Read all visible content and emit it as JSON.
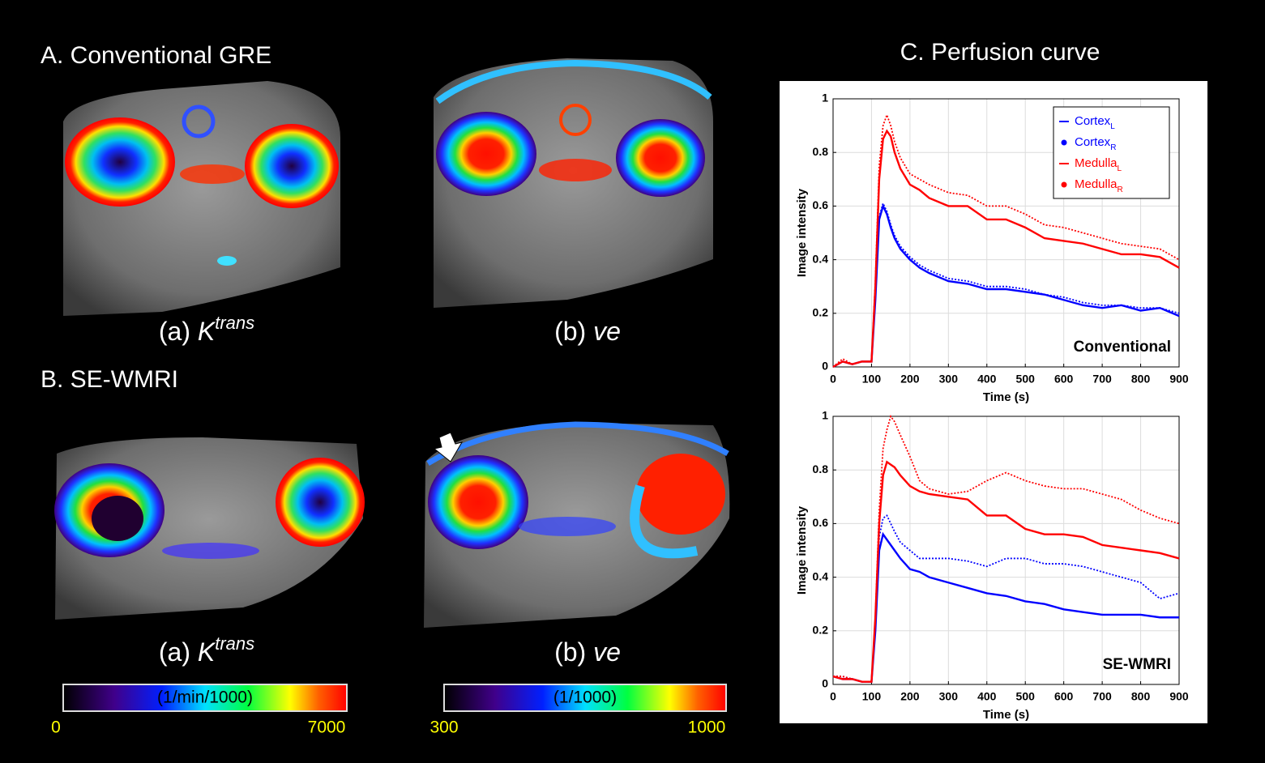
{
  "panels": {
    "a_title": "A. Conventional GRE",
    "b_title": "B. SE-WMRI",
    "c_title": "C. Perfusion curve",
    "captions": [
      {
        "prefix": "(a)",
        "symbol": "K",
        "superscript": "trans"
      },
      {
        "prefix": "(b)",
        "symbol": "ve"
      },
      {
        "prefix": "(a)",
        "symbol": "K",
        "superscript": "trans"
      },
      {
        "prefix": "(b)",
        "symbol": "ve"
      }
    ]
  },
  "colorbars": [
    {
      "label": "(1/min/1000)",
      "min": "0",
      "max": "7000"
    },
    {
      "label": "(1/1000)",
      "min": "300",
      "max": "1000"
    }
  ],
  "chart_data": [
    {
      "type": "line",
      "annotation": "Conventional",
      "xlabel": "Time (s)",
      "ylabel": "Image intensity",
      "xlim": [
        0,
        900
      ],
      "ylim": [
        0,
        1
      ],
      "xticks": [
        0,
        100,
        200,
        300,
        400,
        500,
        600,
        700,
        800,
        900
      ],
      "yticks": [
        0,
        0.2,
        0.4,
        0.6,
        0.8,
        1
      ],
      "grid": true,
      "legend": "upper right",
      "x": [
        0,
        25,
        50,
        75,
        100,
        110,
        120,
        130,
        140,
        150,
        160,
        175,
        200,
        225,
        250,
        300,
        350,
        400,
        450,
        500,
        550,
        600,
        650,
        700,
        750,
        800,
        850,
        900
      ],
      "series": [
        {
          "name": "Cortex",
          "subscript": "L",
          "color": "#0000ff",
          "style": "solid",
          "values": [
            0,
            0.02,
            0.01,
            0.02,
            0.02,
            0.25,
            0.55,
            0.6,
            0.57,
            0.52,
            0.48,
            0.44,
            0.4,
            0.37,
            0.35,
            0.32,
            0.31,
            0.29,
            0.29,
            0.28,
            0.27,
            0.25,
            0.23,
            0.22,
            0.23,
            0.21,
            0.22,
            0.19
          ]
        },
        {
          "name": "Cortex",
          "subscript": "R",
          "color": "#0000ff",
          "style": "dotted",
          "values": [
            0,
            0.02,
            0.01,
            0.02,
            0.02,
            0.26,
            0.56,
            0.61,
            0.58,
            0.53,
            0.49,
            0.45,
            0.41,
            0.38,
            0.36,
            0.33,
            0.32,
            0.3,
            0.3,
            0.29,
            0.27,
            0.26,
            0.24,
            0.23,
            0.23,
            0.22,
            0.22,
            0.2
          ]
        },
        {
          "name": "Medulla",
          "subscript": "L",
          "color": "#ff0000",
          "style": "solid",
          "values": [
            0,
            0.02,
            0.01,
            0.02,
            0.02,
            0.3,
            0.7,
            0.85,
            0.88,
            0.86,
            0.8,
            0.74,
            0.68,
            0.66,
            0.63,
            0.6,
            0.6,
            0.55,
            0.55,
            0.52,
            0.48,
            0.47,
            0.46,
            0.44,
            0.42,
            0.42,
            0.41,
            0.37
          ]
        },
        {
          "name": "Medulla",
          "subscript": "R",
          "color": "#ff0000",
          "style": "dotted",
          "values": [
            0,
            0.03,
            0.01,
            0.02,
            0.02,
            0.32,
            0.75,
            0.9,
            0.94,
            0.9,
            0.84,
            0.78,
            0.72,
            0.7,
            0.68,
            0.65,
            0.64,
            0.6,
            0.6,
            0.57,
            0.53,
            0.52,
            0.5,
            0.48,
            0.46,
            0.45,
            0.44,
            0.4
          ]
        }
      ]
    },
    {
      "type": "line",
      "annotation": "SE-WMRI",
      "xlabel": "Time (s)",
      "ylabel": "Image intensity",
      "xlim": [
        0,
        900
      ],
      "ylim": [
        0,
        1
      ],
      "xticks": [
        0,
        100,
        200,
        300,
        400,
        500,
        600,
        700,
        800,
        900
      ],
      "yticks": [
        0,
        0.2,
        0.4,
        0.6,
        0.8,
        1
      ],
      "grid": true,
      "x": [
        0,
        25,
        50,
        75,
        100,
        110,
        120,
        130,
        140,
        150,
        160,
        175,
        200,
        225,
        250,
        300,
        350,
        400,
        450,
        500,
        550,
        600,
        650,
        700,
        750,
        800,
        850,
        900
      ],
      "series": [
        {
          "name": "Cortex",
          "subscript": "L",
          "color": "#0000ff",
          "style": "solid",
          "values": [
            0.03,
            0.02,
            0.02,
            0.01,
            0.01,
            0.2,
            0.5,
            0.56,
            0.54,
            0.52,
            0.5,
            0.47,
            0.43,
            0.42,
            0.4,
            0.38,
            0.36,
            0.34,
            0.33,
            0.31,
            0.3,
            0.28,
            0.27,
            0.26,
            0.26,
            0.26,
            0.25,
            0.25
          ]
        },
        {
          "name": "Cortex",
          "subscript": "R",
          "color": "#0000ff",
          "style": "dotted",
          "values": [
            0.03,
            0.03,
            0.02,
            0.01,
            0.01,
            0.22,
            0.55,
            0.62,
            0.63,
            0.6,
            0.57,
            0.53,
            0.5,
            0.47,
            0.47,
            0.47,
            0.46,
            0.44,
            0.47,
            0.47,
            0.45,
            0.45,
            0.44,
            0.42,
            0.4,
            0.38,
            0.32,
            0.34
          ]
        },
        {
          "name": "Medulla",
          "subscript": "L",
          "color": "#ff0000",
          "style": "solid",
          "values": [
            0.03,
            0.02,
            0.02,
            0.01,
            0.01,
            0.25,
            0.6,
            0.78,
            0.83,
            0.82,
            0.81,
            0.78,
            0.74,
            0.72,
            0.71,
            0.7,
            0.69,
            0.63,
            0.63,
            0.58,
            0.56,
            0.56,
            0.55,
            0.52,
            0.51,
            0.5,
            0.49,
            0.47
          ]
        },
        {
          "name": "Medulla",
          "subscript": "R",
          "color": "#ff0000",
          "style": "dotted",
          "values": [
            0.03,
            0.03,
            0.02,
            0.01,
            0.01,
            0.25,
            0.65,
            0.88,
            0.95,
            1.0,
            0.98,
            0.93,
            0.85,
            0.76,
            0.73,
            0.71,
            0.72,
            0.76,
            0.79,
            0.76,
            0.74,
            0.73,
            0.73,
            0.71,
            0.69,
            0.65,
            0.62,
            0.6
          ]
        }
      ]
    }
  ]
}
